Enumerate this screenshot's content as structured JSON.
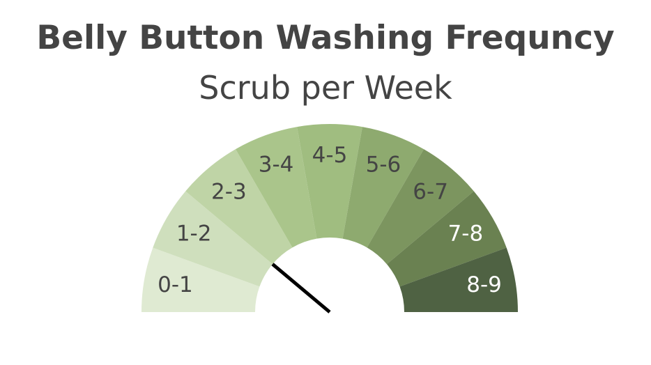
{
  "chart_data": {
    "type": "gauge",
    "title": "Belly Button Washing Frequncy",
    "subtitle": "Scrub per Week",
    "range": [
      0,
      9
    ],
    "needle_value": 2,
    "segments": [
      {
        "label": "0-1",
        "from": 0,
        "to": 1,
        "color": "#dfead2",
        "text_color": "#444444"
      },
      {
        "label": "1-2",
        "from": 1,
        "to": 2,
        "color": "#cfdfbd",
        "text_color": "#444444"
      },
      {
        "label": "2-3",
        "from": 2,
        "to": 3,
        "color": "#bfd4a6",
        "text_color": "#444444"
      },
      {
        "label": "3-4",
        "from": 3,
        "to": 4,
        "color": "#aac58b",
        "text_color": "#444444"
      },
      {
        "label": "4-5",
        "from": 4,
        "to": 5,
        "color": "#a0bd80",
        "text_color": "#444444"
      },
      {
        "label": "5-6",
        "from": 5,
        "to": 6,
        "color": "#8eaa6f",
        "text_color": "#444444"
      },
      {
        "label": "6-7",
        "from": 6,
        "to": 7,
        "color": "#7c955f",
        "text_color": "#444444"
      },
      {
        "label": "7-8",
        "from": 7,
        "to": 8,
        "color": "#6a8151",
        "text_color": "#ffffff"
      },
      {
        "label": "8-9",
        "from": 8,
        "to": 9,
        "color": "#4f6243",
        "text_color": "#ffffff"
      }
    ],
    "needle_color": "#000000"
  }
}
